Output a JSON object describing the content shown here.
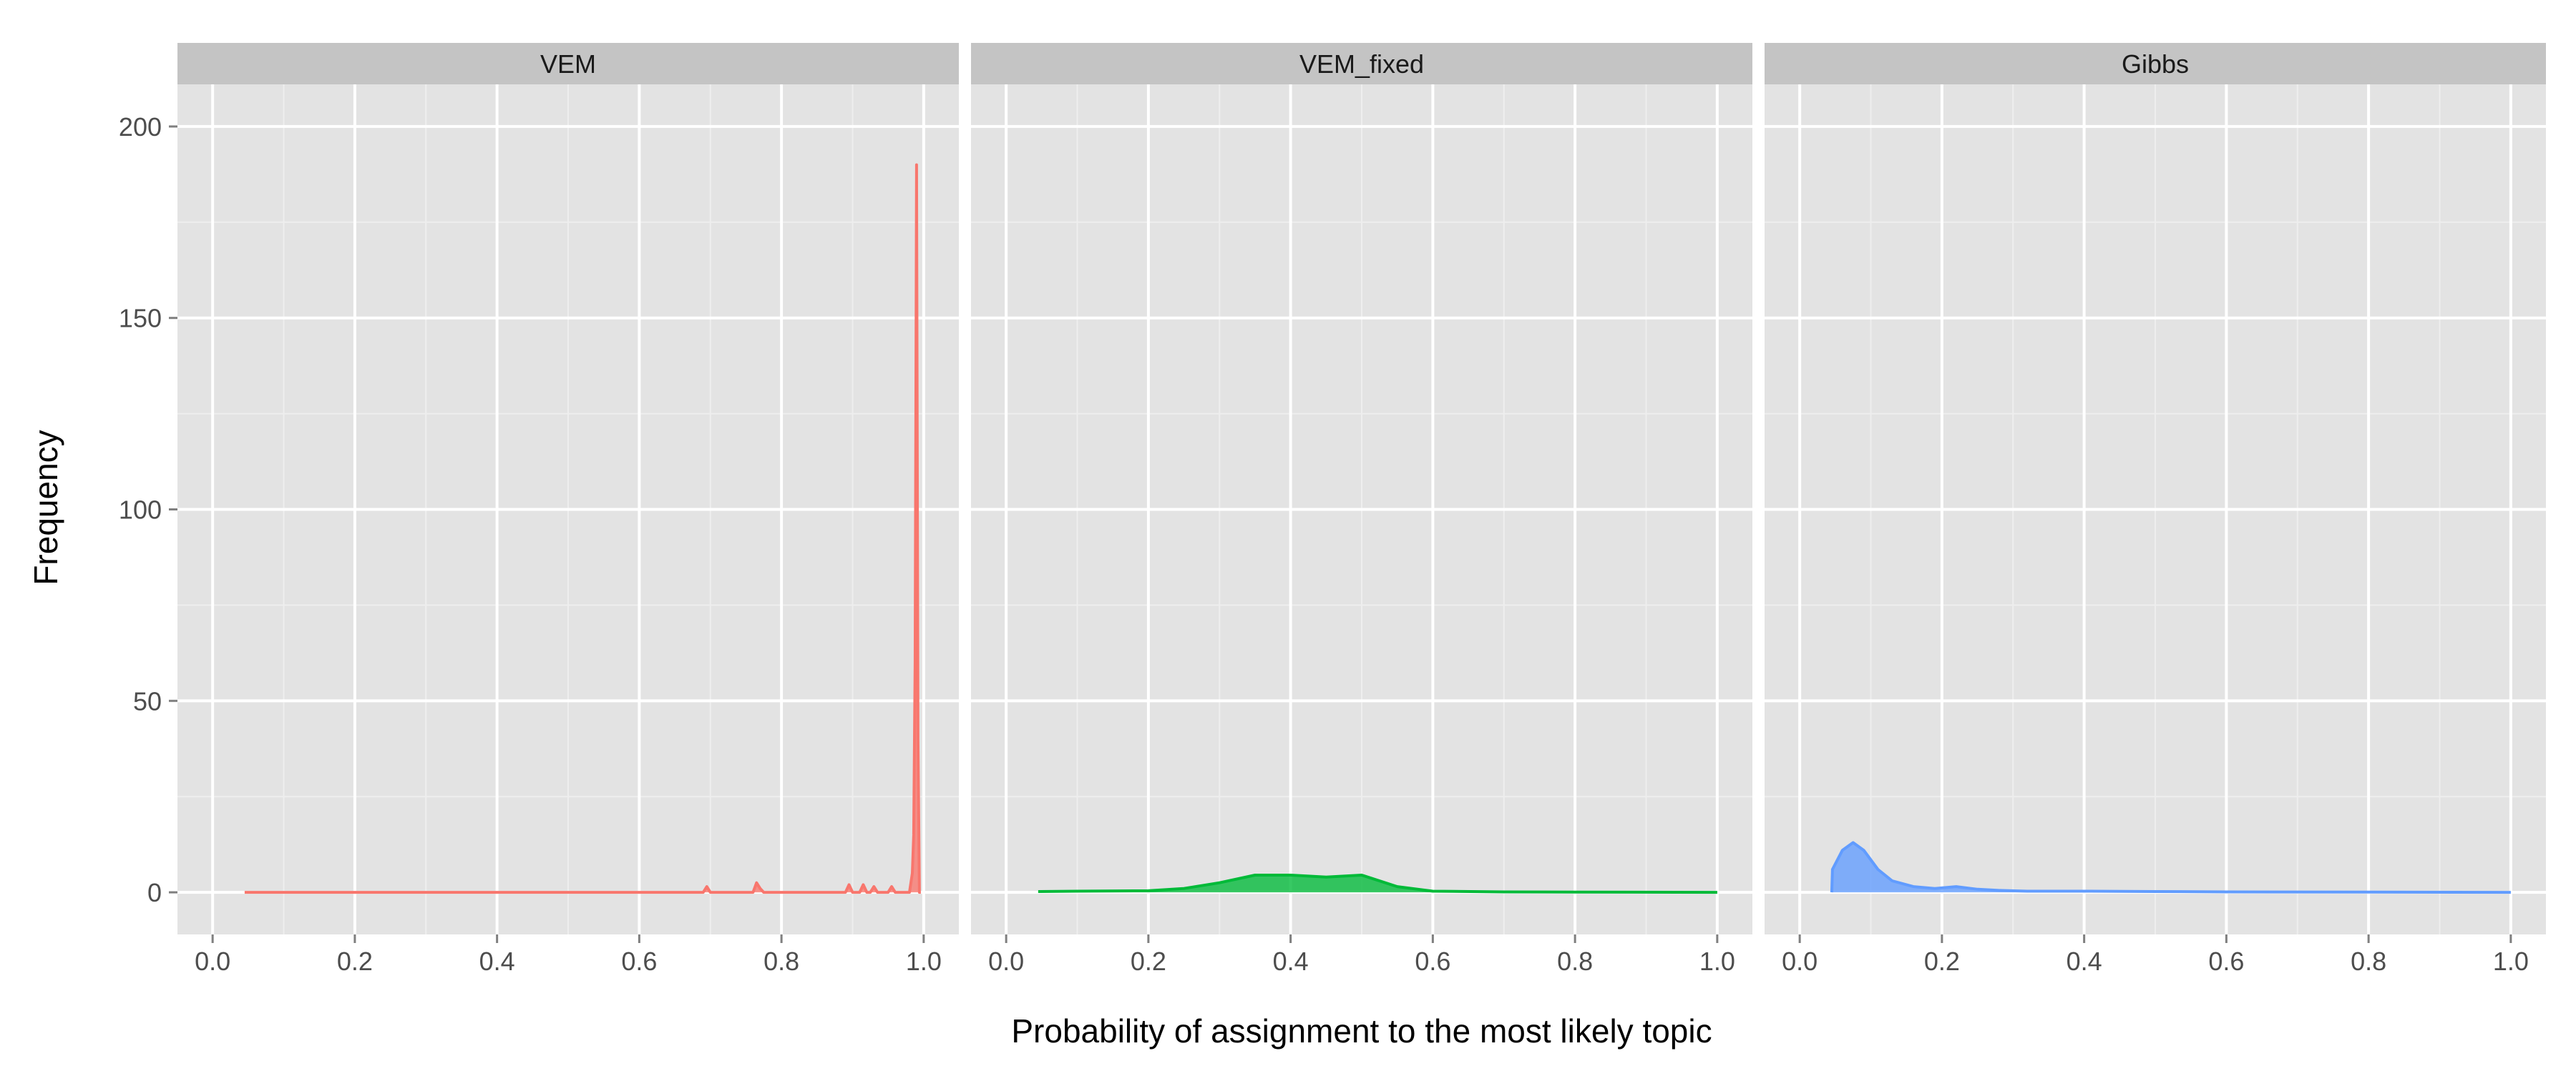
{
  "chart_data": {
    "type": "area",
    "xlabel": "Probability of assignment to the most likely topic",
    "ylabel": "Frequency",
    "xlim": [
      0,
      1
    ],
    "ylim": [
      -11,
      211
    ],
    "x_ticks": [
      "0.0",
      "0.2",
      "0.4",
      "0.6",
      "0.8",
      "1.0"
    ],
    "y_ticks": [
      "0",
      "50",
      "100",
      "150",
      "200"
    ],
    "grid": true,
    "legend": "none",
    "series": [
      {
        "name": "VEM",
        "color": "#F8766D",
        "x": [
          0.045,
          0.69,
          0.695,
          0.7,
          0.705,
          0.76,
          0.765,
          0.77,
          0.775,
          0.89,
          0.895,
          0.9,
          0.905,
          0.91,
          0.915,
          0.92,
          0.925,
          0.93,
          0.935,
          0.94,
          0.945,
          0.95,
          0.955,
          0.96,
          0.98,
          0.984,
          0.986,
          0.988,
          0.99,
          0.992,
          0.994,
          0.996
        ],
        "y": [
          0,
          0,
          1.5,
          0,
          0,
          0,
          2.5,
          1,
          0,
          0,
          2,
          0,
          0,
          0,
          2,
          0,
          0,
          1.5,
          0,
          0,
          0,
          0,
          1.5,
          0,
          0,
          5,
          15,
          60,
          190,
          40,
          0,
          0
        ]
      },
      {
        "name": "VEM_fixed",
        "color": "#00BA38",
        "x": [
          0.045,
          0.1,
          0.2,
          0.25,
          0.3,
          0.35,
          0.4,
          0.45,
          0.5,
          0.55,
          0.6,
          0.7,
          0.8,
          1.0
        ],
        "y": [
          0.2,
          0.3,
          0.4,
          1.0,
          2.5,
          4.5,
          4.5,
          4.0,
          4.5,
          1.5,
          0.3,
          0.1,
          0.05,
          0
        ]
      },
      {
        "name": "Gibbs",
        "color": "#619CFF",
        "x": [
          0.045,
          0.046,
          0.06,
          0.075,
          0.09,
          0.11,
          0.13,
          0.16,
          0.19,
          0.22,
          0.25,
          0.28,
          0.32,
          0.4,
          0.5,
          0.6,
          0.8,
          1.0
        ],
        "y": [
          0,
          6,
          11,
          13,
          11,
          6,
          3,
          1.5,
          1,
          1.5,
          0.8,
          0.5,
          0.3,
          0.3,
          0.2,
          0.1,
          0.05,
          0
        ]
      }
    ]
  }
}
